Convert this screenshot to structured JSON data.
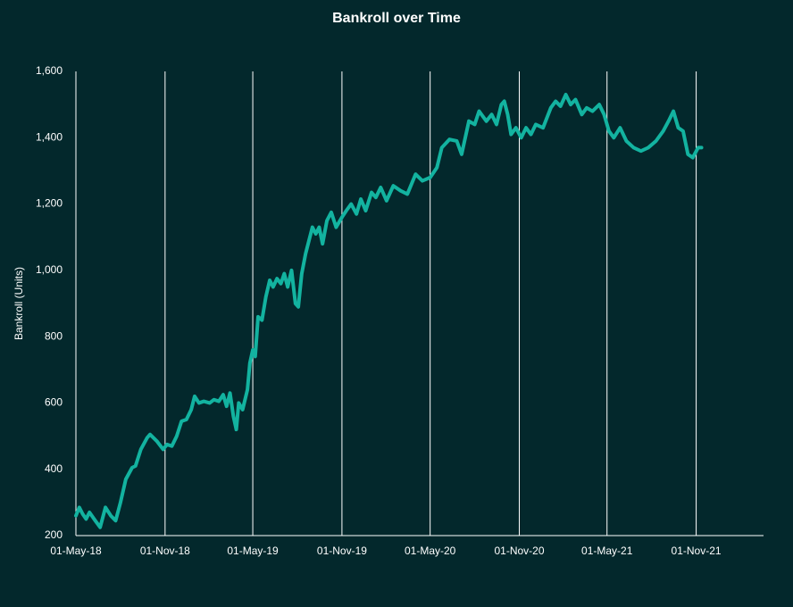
{
  "chart_data": {
    "type": "line",
    "title": "Bankroll over Time",
    "y_label": "Bankroll (Units)",
    "x": [
      "2018-05-01",
      "2018-05-08",
      "2018-05-15",
      "2018-05-22",
      "2018-05-29",
      "2018-06-10",
      "2018-06-20",
      "2018-07-01",
      "2018-07-12",
      "2018-07-22",
      "2018-08-01",
      "2018-08-12",
      "2018-08-25",
      "2018-09-01",
      "2018-09-12",
      "2018-09-25",
      "2018-10-01",
      "2018-10-15",
      "2018-10-28",
      "2018-11-05",
      "2018-11-15",
      "2018-11-25",
      "2018-12-05",
      "2018-12-15",
      "2018-12-25",
      "2019-01-01",
      "2019-01-10",
      "2019-01-20",
      "2019-02-01",
      "2019-02-10",
      "2019-02-20",
      "2019-03-01",
      "2019-03-08",
      "2019-03-15",
      "2019-03-22",
      "2019-03-28",
      "2019-04-02",
      "2019-04-10",
      "2019-04-20",
      "2019-04-25",
      "2019-05-01",
      "2019-05-06",
      "2019-05-12",
      "2019-05-20",
      "2019-05-28",
      "2019-06-05",
      "2019-06-12",
      "2019-06-20",
      "2019-06-28",
      "2019-07-05",
      "2019-07-12",
      "2019-07-20",
      "2019-07-28",
      "2019-08-03",
      "2019-08-10",
      "2019-08-18",
      "2019-08-25",
      "2019-09-01",
      "2019-09-08",
      "2019-09-15",
      "2019-09-22",
      "2019-10-01",
      "2019-10-10",
      "2019-10-20",
      "2019-11-01",
      "2019-11-10",
      "2019-11-20",
      "2019-12-01",
      "2019-12-10",
      "2019-12-20",
      "2020-01-01",
      "2020-01-10",
      "2020-01-20",
      "2020-02-01",
      "2020-02-15",
      "2020-03-01",
      "2020-03-15",
      "2020-04-01",
      "2020-04-15",
      "2020-05-01",
      "2020-05-15",
      "2020-05-25",
      "2020-06-10",
      "2020-06-25",
      "2020-07-05",
      "2020-07-20",
      "2020-08-01",
      "2020-08-10",
      "2020-08-25",
      "2020-09-05",
      "2020-09-15",
      "2020-09-25",
      "2020-10-01",
      "2020-10-08",
      "2020-10-15",
      "2020-10-25",
      "2020-11-05",
      "2020-11-15",
      "2020-11-25",
      "2020-12-05",
      "2020-12-20",
      "2021-01-05",
      "2021-01-15",
      "2021-01-25",
      "2021-02-05",
      "2021-02-15",
      "2021-02-25",
      "2021-03-10",
      "2021-03-20",
      "2021-04-01",
      "2021-04-15",
      "2021-04-25",
      "2021-05-05",
      "2021-05-15",
      "2021-05-28",
      "2021-06-10",
      "2021-06-25",
      "2021-07-10",
      "2021-07-25",
      "2021-08-10",
      "2021-08-25",
      "2021-09-05",
      "2021-09-15",
      "2021-09-25",
      "2021-10-05",
      "2021-10-15",
      "2021-10-25",
      "2021-11-05",
      "2021-11-12"
    ],
    "series": [
      {
        "name": "Bankroll",
        "color": "#13b3a0",
        "values": [
          260,
          285,
          265,
          250,
          270,
          245,
          225,
          285,
          260,
          245,
          300,
          370,
          405,
          410,
          460,
          495,
          505,
          485,
          460,
          475,
          470,
          500,
          545,
          550,
          580,
          620,
          600,
          605,
          600,
          610,
          605,
          625,
          590,
          630,
          560,
          520,
          600,
          580,
          640,
          720,
          760,
          740,
          860,
          850,
          920,
          970,
          950,
          975,
          960,
          990,
          950,
          1000,
          900,
          890,
          990,
          1050,
          1090,
          1130,
          1110,
          1130,
          1080,
          1150,
          1175,
          1130,
          1160,
          1180,
          1200,
          1170,
          1215,
          1180,
          1235,
          1220,
          1250,
          1210,
          1255,
          1240,
          1230,
          1290,
          1270,
          1280,
          1310,
          1370,
          1395,
          1390,
          1350,
          1450,
          1440,
          1480,
          1450,
          1470,
          1440,
          1500,
          1510,
          1470,
          1410,
          1430,
          1400,
          1430,
          1410,
          1440,
          1430,
          1490,
          1510,
          1495,
          1530,
          1500,
          1515,
          1470,
          1490,
          1480,
          1500,
          1470,
          1420,
          1400,
          1430,
          1390,
          1370,
          1360,
          1370,
          1390,
          1420,
          1450,
          1480,
          1430,
          1420,
          1350,
          1340,
          1370,
          1370
        ]
      }
    ],
    "xlim": [
      "2018-05-01",
      "2022-03-20"
    ],
    "xticks": [
      {
        "value": "2018-05-01",
        "label": "01-May-18"
      },
      {
        "value": "2018-11-01",
        "label": "01-Nov-18"
      },
      {
        "value": "2019-05-01",
        "label": "01-May-19"
      },
      {
        "value": "2019-11-01",
        "label": "01-Nov-19"
      },
      {
        "value": "2020-05-01",
        "label": "01-May-20"
      },
      {
        "value": "2020-11-01",
        "label": "01-Nov-20"
      },
      {
        "value": "2021-05-01",
        "label": "01-May-21"
      },
      {
        "value": "2021-11-01",
        "label": "01-Nov-21"
      }
    ],
    "ylim": [
      200,
      1600
    ],
    "yticks": [
      200,
      400,
      600,
      800,
      {
        "value": 1000,
        "label": "1,000"
      },
      {
        "value": 1200,
        "label": "1,200"
      },
      {
        "value": 1400,
        "label": "1,400"
      },
      {
        "value": 1600,
        "label": "1,600"
      }
    ],
    "grid": "x"
  }
}
